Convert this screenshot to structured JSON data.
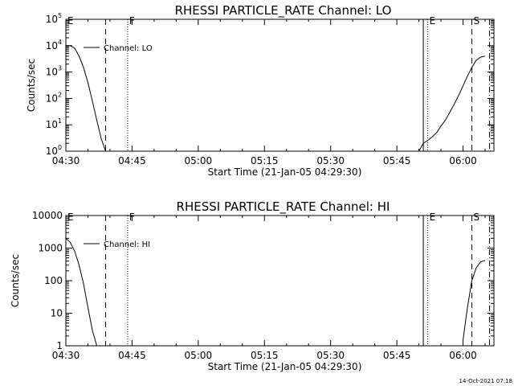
{
  "footer": {
    "timestamp": "14-Oct-2021 07:18"
  },
  "chart_data": [
    {
      "type": "line",
      "title": "RHESSI PARTICLE_RATE Channel: LO",
      "xlabel": "Start Time (21-Jan-05 04:29:30)",
      "ylabel": "Counts/sec",
      "yscale": "log",
      "xlim": [
        "04:30",
        "06:07"
      ],
      "ylim": [
        1,
        100000
      ],
      "xticks": [
        "04:30",
        "04:45",
        "05:00",
        "05:15",
        "05:30",
        "05:45",
        "06:00"
      ],
      "yticks": [
        {
          "value": 1,
          "base": "10",
          "exp": "0"
        },
        {
          "value": 10,
          "base": "10",
          "exp": "1"
        },
        {
          "value": 100,
          "base": "10",
          "exp": "2"
        },
        {
          "value": 1000,
          "base": "10",
          "exp": "3"
        },
        {
          "value": 10000,
          "base": "10",
          "exp": "4"
        },
        {
          "value": 100000,
          "base": "10",
          "exp": "5"
        }
      ],
      "legend": "top-left",
      "series": [
        {
          "name": "Channel: LO",
          "segments": [
            [
              [
                "04:30",
                10000
              ],
              [
                "04:31",
                10000
              ],
              [
                "04:32",
                8000
              ],
              [
                "04:33",
                4000
              ],
              [
                "04:34",
                1500
              ],
              [
                "04:35",
                400
              ],
              [
                "04:36",
                80
              ],
              [
                "04:37",
                15
              ],
              [
                "04:38",
                3
              ],
              [
                "04:39",
                1
              ]
            ],
            [
              [
                "05:50",
                1
              ],
              [
                "05:51",
                2
              ],
              [
                "05:52",
                2.5
              ],
              [
                "05:53",
                3.5
              ],
              [
                "05:54",
                5
              ],
              [
                "05:55",
                9
              ],
              [
                "05:56",
                15
              ],
              [
                "05:57",
                30
              ],
              [
                "05:58",
                60
              ],
              [
                "05:59",
                130
              ],
              [
                "06:00",
                300
              ],
              [
                "06:01",
                700
              ],
              [
                "06:02",
                1500
              ],
              [
                "06:03",
                2800
              ],
              [
                "06:04",
                3700
              ],
              [
                "06:05",
                4000
              ]
            ]
          ]
        }
      ],
      "markers": [
        {
          "label": "E",
          "time": "04:30",
          "style": "none"
        },
        {
          "label": "",
          "time": "04:39",
          "style": "dashed"
        },
        {
          "label": "F",
          "time": "04:44",
          "style": "dotted"
        },
        {
          "label": "",
          "time": "05:51",
          "style": "solid"
        },
        {
          "label": "E",
          "time": "05:52",
          "style": "dotted"
        },
        {
          "label": "S",
          "time": "06:02",
          "style": "dashed"
        },
        {
          "label": "",
          "time": "06:06",
          "style": "dashdot"
        }
      ]
    },
    {
      "type": "line",
      "title": "RHESSI PARTICLE_RATE Channel: HI",
      "xlabel": "Start Time (21-Jan-05 04:29:30)",
      "ylabel": "Counts/sec",
      "yscale": "log",
      "xlim": [
        "04:30",
        "06:07"
      ],
      "ylim": [
        1,
        10000
      ],
      "xticks": [
        "04:30",
        "04:45",
        "05:00",
        "05:15",
        "05:30",
        "05:45",
        "06:00"
      ],
      "yticks": [
        {
          "value": 1,
          "label": "1"
        },
        {
          "value": 10,
          "label": "10"
        },
        {
          "value": 100,
          "label": "100"
        },
        {
          "value": 1000,
          "label": "1000"
        },
        {
          "value": 10000,
          "label": "10000"
        }
      ],
      "legend": "top-left",
      "series": [
        {
          "name": "Channel: HI",
          "segments": [
            [
              [
                "04:30",
                2000
              ],
              [
                "04:31",
                1500
              ],
              [
                "04:32",
                800
              ],
              [
                "04:33",
                300
              ],
              [
                "04:34",
                80
              ],
              [
                "04:35",
                15
              ],
              [
                "04:36",
                3
              ],
              [
                "04:37",
                1
              ]
            ],
            [
              [
                "06:00",
                1.5
              ],
              [
                "06:01",
                15
              ],
              [
                "06:02",
                100
              ],
              [
                "06:03",
                250
              ],
              [
                "06:04",
                380
              ],
              [
                "06:05",
                420
              ]
            ]
          ]
        }
      ],
      "markers": [
        {
          "label": "E",
          "time": "04:30",
          "style": "none"
        },
        {
          "label": "",
          "time": "04:39",
          "style": "dashed"
        },
        {
          "label": "F",
          "time": "04:44",
          "style": "dotted"
        },
        {
          "label": "",
          "time": "05:51",
          "style": "solid"
        },
        {
          "label": "E",
          "time": "05:52",
          "style": "dotted"
        },
        {
          "label": "S",
          "time": "06:02",
          "style": "dashed"
        },
        {
          "label": "",
          "time": "06:06",
          "style": "dashdot"
        }
      ]
    }
  ]
}
